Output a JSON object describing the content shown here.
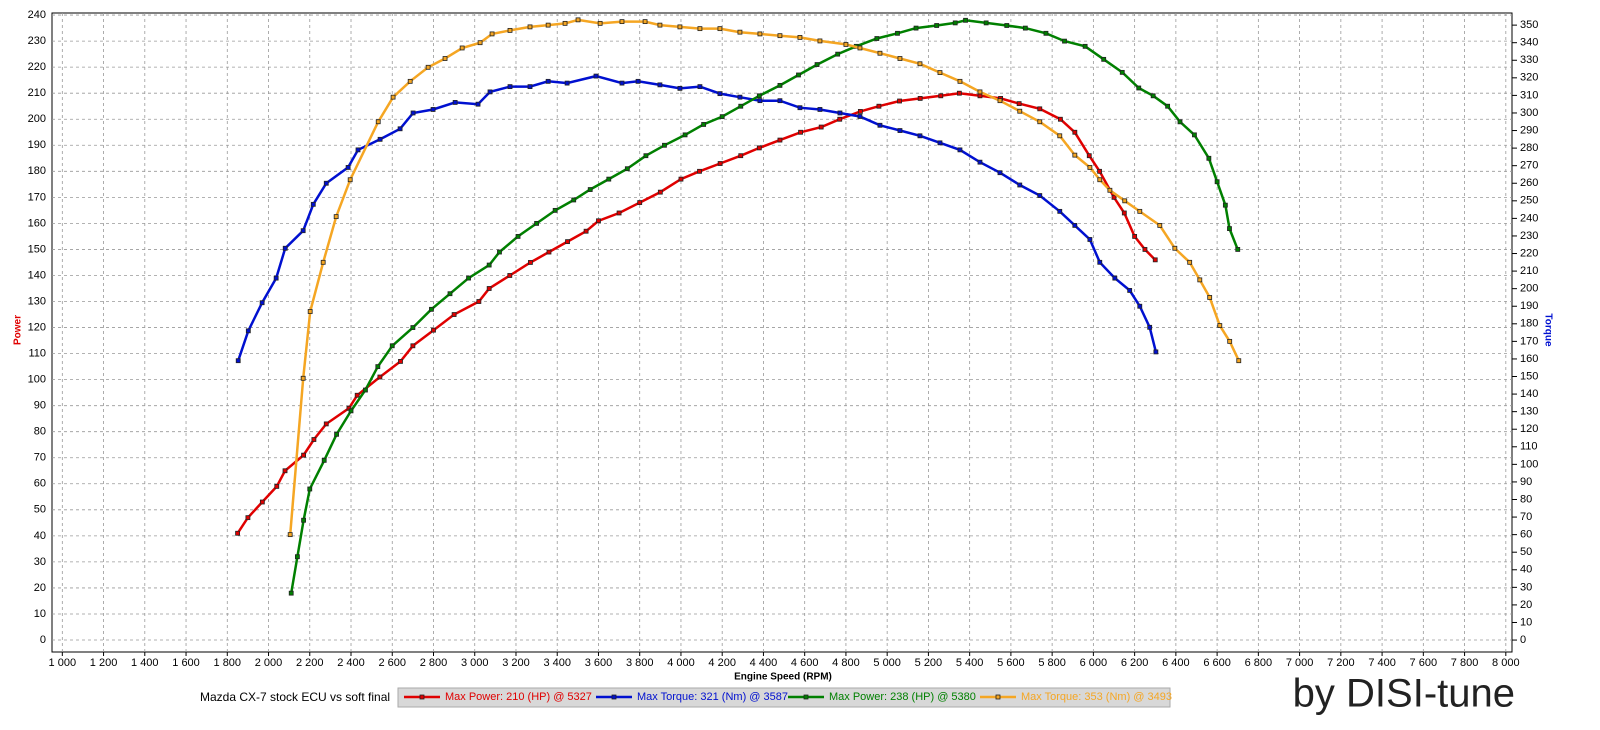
{
  "chart_data": {
    "type": "line",
    "title": "Mazda CX-7 stock ECU vs soft final",
    "watermark": "by DISI-tune",
    "xlabel": "Engine Speed (RPM)",
    "ylabel": "Power",
    "y2label": "Torque",
    "grid": true,
    "xlim": [
      950,
      8030
    ],
    "xticks": [
      {
        "value": 1000,
        "label": "1 000"
      },
      {
        "value": 1200,
        "label": "1 200"
      },
      {
        "value": 1400,
        "label": "1 400"
      },
      {
        "value": 1600,
        "label": "1 600"
      },
      {
        "value": 1800,
        "label": "1 800"
      },
      {
        "value": 2000,
        "label": "2 000"
      },
      {
        "value": 2200,
        "label": "2 200"
      },
      {
        "value": 2400,
        "label": "2 400"
      },
      {
        "value": 2600,
        "label": "2 600"
      },
      {
        "value": 2800,
        "label": "2 800"
      },
      {
        "value": 3000,
        "label": "3 000"
      },
      {
        "value": 3200,
        "label": "3 200"
      },
      {
        "value": 3400,
        "label": "3 400"
      },
      {
        "value": 3600,
        "label": "3 600"
      },
      {
        "value": 3800,
        "label": "3 800"
      },
      {
        "value": 4000,
        "label": "4 000"
      },
      {
        "value": 4200,
        "label": "4 200"
      },
      {
        "value": 4400,
        "label": "4 400"
      },
      {
        "value": 4600,
        "label": "4 600"
      },
      {
        "value": 4800,
        "label": "4 800"
      },
      {
        "value": 5000,
        "label": "5 000"
      },
      {
        "value": 5200,
        "label": "5 200"
      },
      {
        "value": 5400,
        "label": "5 400"
      },
      {
        "value": 5600,
        "label": "5 600"
      },
      {
        "value": 5800,
        "label": "5 800"
      },
      {
        "value": 6000,
        "label": "6 000"
      },
      {
        "value": 6200,
        "label": "6 200"
      },
      {
        "value": 6400,
        "label": "6 400"
      },
      {
        "value": 6600,
        "label": "6 600"
      },
      {
        "value": 6800,
        "label": "6 800"
      },
      {
        "value": 7000,
        "label": "7 000"
      },
      {
        "value": 7200,
        "label": "7 200"
      },
      {
        "value": 7400,
        "label": "7 400"
      },
      {
        "value": 7600,
        "label": "7 600"
      },
      {
        "value": 7800,
        "label": "7 800"
      },
      {
        "value": 8000,
        "label": "8 000"
      }
    ],
    "ylim": [
      -4.6,
      240.8
    ],
    "yticks": [
      0,
      10,
      20,
      30,
      40,
      50,
      60,
      70,
      80,
      90,
      100,
      110,
      120,
      130,
      140,
      150,
      160,
      170,
      180,
      190,
      200,
      210,
      220,
      230,
      240
    ],
    "y2lim": [
      -6.8,
      356.9
    ],
    "y2ticks": [
      0,
      10,
      20,
      30,
      40,
      50,
      60,
      70,
      80,
      90,
      100,
      110,
      120,
      130,
      140,
      150,
      160,
      170,
      180,
      190,
      200,
      210,
      220,
      230,
      240,
      250,
      260,
      270,
      280,
      290,
      300,
      310,
      320,
      330,
      340,
      350
    ],
    "series": [
      {
        "name": "Max Power: 210 (HP) @ 5327",
        "color": "#e00000",
        "axis": "y",
        "x": [
          1850,
          1900,
          1970,
          2040,
          2080,
          2170,
          2220,
          2280,
          2390,
          2430,
          2540,
          2640,
          2700,
          2800,
          2900,
          3020,
          3070,
          3170,
          3270,
          3360,
          3450,
          3540,
          3600,
          3700,
          3800,
          3900,
          4000,
          4090,
          4190,
          4290,
          4380,
          4480,
          4580,
          4680,
          4770,
          4870,
          4960,
          5060,
          5160,
          5260,
          5350,
          5450,
          5550,
          5640,
          5740,
          5840,
          5910,
          5980,
          6030,
          6100,
          6150,
          6200,
          6250,
          6300
        ],
        "values": [
          41,
          47,
          53,
          59,
          65,
          71,
          77,
          83,
          89,
          94,
          101,
          107,
          113,
          119,
          125,
          130,
          135,
          140,
          145,
          149,
          153,
          157,
          161,
          164,
          168,
          172,
          177,
          180,
          183,
          186,
          189,
          192,
          195,
          197,
          200,
          203,
          205,
          207,
          208,
          209,
          210,
          209,
          208,
          206,
          204,
          200,
          195,
          186,
          180,
          170,
          164,
          155,
          150,
          146
        ]
      },
      {
        "name": "Max Torque: 321 (Nm) @ 3587",
        "color": "#0010d0",
        "axis": "y2",
        "x": [
          1853,
          1902,
          1969,
          2037,
          2081,
          2168,
          2217,
          2280,
          2386,
          2434,
          2541,
          2638,
          2701,
          2798,
          2905,
          3016,
          3074,
          3171,
          3268,
          3356,
          3448,
          3588,
          3714,
          3792,
          3898,
          3995,
          4092,
          4189,
          4286,
          4383,
          4480,
          4577,
          4674,
          4771,
          4868,
          4965,
          5062,
          5159,
          5256,
          5353,
          5450,
          5547,
          5643,
          5740,
          5837,
          5910,
          5983,
          6031,
          6104,
          6176,
          6225,
          6273,
          6303
        ],
        "values": [
          159,
          176,
          192,
          206,
          223,
          233,
          248,
          260,
          269,
          279,
          285,
          291,
          300,
          302,
          306,
          305,
          312,
          315,
          315,
          318,
          317,
          321,
          317,
          318,
          316,
          314,
          315,
          311,
          309,
          307,
          307,
          303,
          302,
          300,
          298,
          293,
          290,
          287,
          283,
          279,
          272,
          266,
          259,
          253,
          244,
          236,
          228,
          215,
          206,
          199,
          190,
          178,
          164
        ]
      },
      {
        "name": "Max Power: 238 (HP) @ 5380",
        "color": "#008000",
        "axis": "y",
        "x": [
          2110,
          2140,
          2170,
          2200,
          2270,
          2330,
          2400,
          2470,
          2530,
          2600,
          2700,
          2790,
          2880,
          2970,
          3070,
          3120,
          3210,
          3300,
          3390,
          3480,
          3560,
          3650,
          3740,
          3830,
          3920,
          4020,
          4110,
          4200,
          4290,
          4380,
          4480,
          4570,
          4660,
          4760,
          4850,
          4950,
          5050,
          5140,
          5240,
          5330,
          5380,
          5480,
          5580,
          5670,
          5770,
          5860,
          5960,
          6050,
          6140,
          6220,
          6290,
          6360,
          6420,
          6490,
          6560,
          6600,
          6640,
          6660,
          6700
        ],
        "values": [
          18,
          32,
          46,
          58,
          69,
          79,
          88,
          96,
          105,
          113,
          120,
          127,
          133,
          139,
          144,
          149,
          155,
          160,
          165,
          169,
          173,
          177,
          181,
          186,
          190,
          194,
          198,
          201,
          205,
          209,
          213,
          217,
          221,
          225,
          228,
          231,
          233,
          235,
          236,
          237,
          238,
          237,
          236,
          235,
          233,
          230,
          228,
          223,
          218,
          212,
          209,
          205,
          199,
          194,
          185,
          176,
          167,
          158,
          150
        ]
      },
      {
        "name": "Max Torque: 353 (Nm) @ 3493",
        "color": "#f5a623",
        "axis": "y2",
        "x": [
          2105,
          2168,
          2202,
          2265,
          2328,
          2396,
          2532,
          2604,
          2687,
          2774,
          2856,
          2939,
          3026,
          3084,
          3171,
          3268,
          3356,
          3438,
          3501,
          3608,
          3714,
          3826,
          3898,
          3995,
          4092,
          4189,
          4286,
          4383,
          4480,
          4577,
          4674,
          4800,
          4868,
          4965,
          5062,
          5159,
          5256,
          5353,
          5450,
          5547,
          5643,
          5740,
          5837,
          5910,
          5983,
          6031,
          6080,
          6152,
          6225,
          6322,
          6395,
          6467,
          6516,
          6564,
          6613,
          6661,
          6705
        ],
        "values": [
          60,
          149,
          187,
          215,
          241,
          262,
          295,
          309,
          318,
          326,
          331,
          337,
          340,
          345,
          347,
          349,
          350,
          351,
          353,
          351,
          352,
          352,
          350,
          349,
          348,
          348,
          346,
          345,
          344,
          343,
          341,
          339,
          337,
          334,
          331,
          328,
          323,
          318,
          312,
          307,
          301,
          295,
          287,
          276,
          269,
          262,
          256,
          250,
          244,
          236,
          223,
          215,
          205,
          195,
          179,
          170,
          159
        ]
      }
    ]
  }
}
